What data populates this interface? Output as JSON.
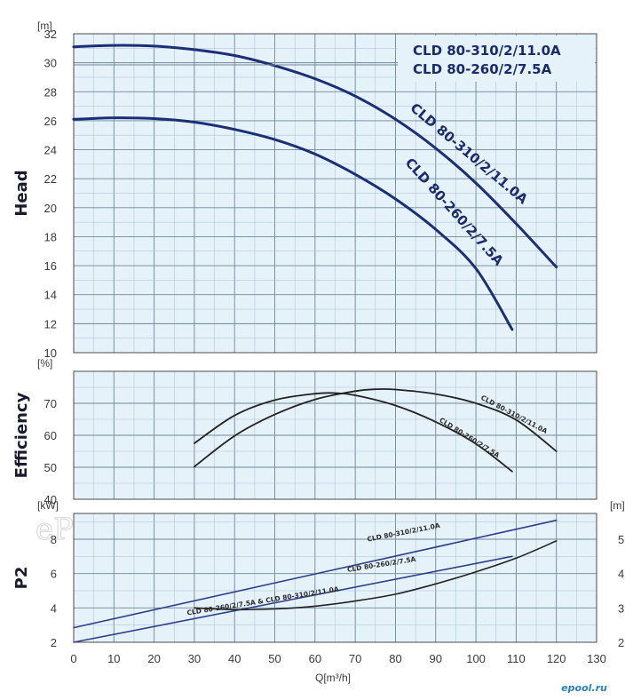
{
  "chart_data": [
    {
      "type": "line",
      "ylabel": "Head",
      "yunit": "[m]",
      "xlim": [
        0,
        130
      ],
      "ylim": [
        10,
        32
      ],
      "yticks": [
        10,
        12,
        14,
        16,
        18,
        20,
        22,
        24,
        26,
        28,
        30,
        32
      ],
      "legend": [
        "CLD 80-310/2/11.0A",
        "CLD 80-260/2/7.5A"
      ],
      "series": [
        {
          "name": "CLD 80-310/2/11.0A",
          "x": [
            0,
            10,
            20,
            30,
            40,
            50,
            60,
            70,
            80,
            90,
            100,
            110,
            120
          ],
          "y": [
            31.1,
            31.2,
            31.15,
            30.9,
            30.5,
            29.8,
            28.9,
            27.7,
            26.1,
            24.1,
            21.7,
            18.9,
            15.9
          ]
        },
        {
          "name": "CLD 80-260/2/7.5A",
          "x": [
            0,
            10,
            20,
            30,
            40,
            50,
            60,
            70,
            80,
            90,
            100,
            109
          ],
          "y": [
            26.1,
            26.2,
            26.15,
            25.9,
            25.4,
            24.7,
            23.7,
            22.3,
            20.6,
            18.5,
            15.8,
            11.6
          ]
        }
      ]
    },
    {
      "type": "line",
      "ylabel": "Efficiency",
      "yunit": "[%]",
      "xlim": [
        0,
        130
      ],
      "ylim": [
        40,
        80
      ],
      "yticks": [
        40,
        50,
        60,
        70
      ],
      "series": [
        {
          "name": "CLD 80-310/2/11.0A",
          "x": [
            30,
            40,
            50,
            60,
            70,
            75,
            80,
            90,
            100,
            110,
            120
          ],
          "y": [
            50.2,
            59.8,
            66.5,
            71.2,
            73.8,
            74.4,
            74.3,
            72.9,
            70.0,
            64.8,
            55.0
          ]
        },
        {
          "name": "CLD 80-260/2/7.5A",
          "x": [
            30,
            40,
            50,
            60,
            65,
            70,
            80,
            90,
            100,
            109
          ],
          "y": [
            57.5,
            66.2,
            71.0,
            73.0,
            73.2,
            72.5,
            69.3,
            64.2,
            57.3,
            48.7
          ]
        }
      ]
    },
    {
      "type": "line",
      "ylabel": "P2",
      "yunit": "[kW]",
      "y2unit": "[m]",
      "xlabel": "Q[m³/h]",
      "xlim": [
        0,
        130
      ],
      "ylim": [
        2,
        9.5
      ],
      "yticks": [
        2,
        4,
        6,
        8
      ],
      "y2lim": [
        2,
        5.75
      ],
      "y2ticks": [
        2,
        3,
        4,
        5
      ],
      "xticks": [
        0,
        10,
        20,
        30,
        40,
        50,
        60,
        70,
        80,
        90,
        100,
        110,
        120,
        130
      ],
      "series": [
        {
          "name": "CLD 80-310/2/11.0A",
          "x": [
            0,
            120
          ],
          "y": [
            2.85,
            9.1
          ]
        },
        {
          "name": "CLD 80-260/2/7.5A",
          "x": [
            0,
            109
          ],
          "y": [
            2.0,
            7.0
          ]
        },
        {
          "name": "CLD 80-260/2/7.5A & CLD 80-310/2/11.0A",
          "axis": "y2",
          "x": [
            30,
            40,
            50,
            60,
            70,
            80,
            90,
            100,
            110,
            120
          ],
          "y": [
            3.0,
            2.95,
            2.97,
            3.05,
            3.2,
            3.4,
            3.7,
            4.05,
            4.45,
            4.95
          ]
        }
      ]
    }
  ],
  "watermarks": [
    "ePool.ru",
    "ePool.ru",
    "ePool.ru"
  ],
  "logo": "epool.ru"
}
